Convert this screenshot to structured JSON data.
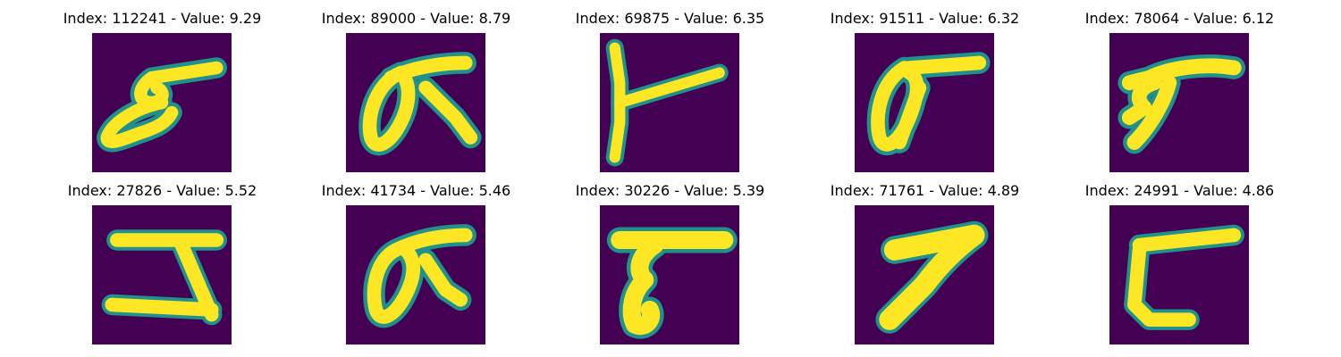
{
  "colors": {
    "background": "#440154",
    "mid": "#21918c",
    "stroke": "#fde725"
  },
  "panels": [
    {
      "title": "Index: 112241 - Value: 9.29",
      "index": 112241,
      "value": 9.29,
      "glyph": "stroke-shape-1"
    },
    {
      "title": "Index: 89000 - Value: 8.79",
      "index": 89000,
      "value": 8.79,
      "glyph": "stroke-shape-2"
    },
    {
      "title": "Index: 69875 - Value: 6.35",
      "index": 69875,
      "value": 6.35,
      "glyph": "stroke-shape-3"
    },
    {
      "title": "Index: 91511 - Value: 6.32",
      "index": 91511,
      "value": 6.32,
      "glyph": "stroke-shape-4"
    },
    {
      "title": "Index: 78064 - Value: 6.12",
      "index": 78064,
      "value": 6.12,
      "glyph": "stroke-shape-5"
    },
    {
      "title": "Index: 27826 - Value: 5.52",
      "index": 27826,
      "value": 5.52,
      "glyph": "stroke-shape-6"
    },
    {
      "title": "Index: 41734 - Value: 5.46",
      "index": 41734,
      "value": 5.46,
      "glyph": "stroke-shape-7"
    },
    {
      "title": "Index: 30226 - Value: 5.39",
      "index": 30226,
      "value": 5.39,
      "glyph": "stroke-shape-8"
    },
    {
      "title": "Index: 71761 - Value: 4.89",
      "index": 71761,
      "value": 4.89,
      "glyph": "stroke-shape-9"
    },
    {
      "title": "Index: 24991 - Value: 4.86",
      "index": 24991,
      "value": 4.86,
      "glyph": "stroke-shape-10"
    }
  ]
}
